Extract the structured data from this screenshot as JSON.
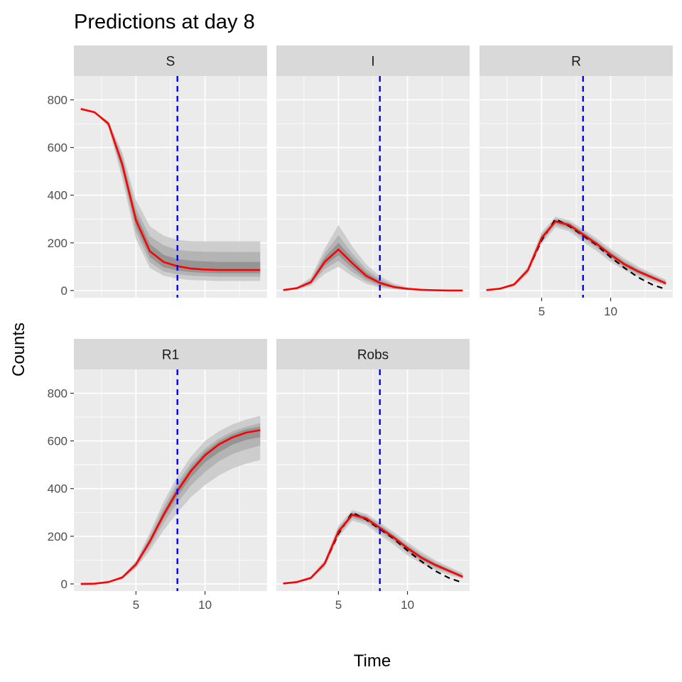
{
  "chart_data": {
    "type": "line",
    "title": "Predictions at day 8",
    "xlabel": "Time",
    "ylabel": "Counts",
    "xlim": [
      0.5,
      14.5
    ],
    "ylim": [
      -30,
      900
    ],
    "x_ticks": [
      5,
      10
    ],
    "y_ticks": [
      0,
      200,
      400,
      600,
      800
    ],
    "vline_x": 8,
    "colors": {
      "panel_bg": "#ebebeb",
      "grid": "#ffffff",
      "strip_bg": "#d9d9d9",
      "median": "#ff0000",
      "vline": "#0000ff",
      "observed": "#000000",
      "band_light": "#c8c8c8",
      "band_mid": "#afafaf",
      "band_dark": "#8f8f8f"
    },
    "x": [
      1,
      2,
      3,
      4,
      5,
      6,
      7,
      8,
      9,
      10,
      11,
      12,
      13,
      14
    ],
    "panels": [
      {
        "name": "S",
        "median": [
          762,
          748,
          700,
          530,
          295,
          165,
          120,
          102,
          92,
          88,
          86,
          86,
          86,
          86
        ],
        "bands": [
          {
            "lo": [
              762,
              748,
              685,
              470,
              215,
              95,
              62,
              50,
              44,
              42,
              40,
              40,
              40,
              40
            ],
            "hi": [
              762,
              748,
              712,
              580,
              380,
              270,
              230,
              212,
              207,
              206,
              206,
              206,
              206,
              206
            ]
          },
          {
            "lo": [
              762,
              748,
              692,
              495,
              245,
              118,
              80,
              68,
              62,
              60,
              58,
              58,
              58,
              58
            ],
            "hi": [
              762,
              748,
              708,
              565,
              345,
              228,
              190,
              170,
              165,
              163,
              162,
              162,
              162,
              162
            ]
          },
          {
            "lo": [
              762,
              748,
              696,
              512,
              268,
              140,
              98,
              84,
              77,
              74,
              72,
              72,
              72,
              72
            ],
            "hi": [
              762,
              748,
              704,
              548,
              322,
              195,
              150,
              132,
              125,
              122,
              120,
              120,
              120,
              120
            ]
          }
        ],
        "observed": null
      },
      {
        "name": "I",
        "median": [
          2,
          10,
          35,
          120,
          172,
          115,
          62,
          32,
          15,
          7,
          3,
          1,
          0,
          0
        ],
        "bands": [
          {
            "lo": [
              1,
              5,
              20,
              70,
              100,
              60,
              28,
              12,
              5,
              2,
              1,
              0,
              0,
              0
            ],
            "hi": [
              3,
              15,
              55,
              175,
              275,
              185,
              110,
              60,
              30,
              14,
              7,
              3,
              1,
              1
            ]
          },
          {
            "lo": [
              1,
              7,
              26,
              90,
              125,
              78,
              40,
              18,
              8,
              3,
              1,
              0,
              0,
              0
            ],
            "hi": [
              3,
              13,
              46,
              155,
              232,
              155,
              90,
              48,
              23,
              10,
              5,
              2,
              1,
              1
            ]
          },
          {
            "lo": [
              2,
              8,
              30,
              105,
              148,
              95,
              50,
              24,
              11,
              5,
              2,
              1,
              0,
              0
            ],
            "hi": [
              3,
              12,
              40,
              138,
              200,
              135,
              76,
              40,
              19,
              9,
              4,
              2,
              1,
              0
            ]
          }
        ],
        "observed": null
      },
      {
        "name": "R",
        "median": [
          2,
          8,
          25,
          85,
          220,
          290,
          275,
          235,
          195,
          150,
          110,
          80,
          55,
          30
        ],
        "bands": [
          {
            "lo": [
              1,
              5,
              18,
              70,
              195,
              265,
              248,
              205,
              165,
              120,
              85,
              58,
              38,
              20
            ],
            "hi": [
              3,
              11,
              32,
              100,
              245,
              310,
              295,
              258,
              218,
              175,
              135,
              100,
              72,
              45
            ]
          },
          {
            "lo": [
              1,
              6,
              21,
              76,
              205,
              275,
              258,
              218,
              178,
              132,
              95,
              67,
              45,
              25
            ],
            "hi": [
              3,
              10,
              29,
              94,
              235,
              302,
              287,
              250,
              208,
              165,
              125,
              92,
              65,
              40
            ]
          },
          {
            "lo": [
              2,
              7,
              23,
              80,
              212,
              282,
              266,
              226,
              186,
              141,
              102,
              73,
              50,
              27
            ],
            "hi": [
              3,
              9,
              27,
              90,
              228,
              297,
              282,
              244,
              203,
              158,
              118,
              87,
              60,
              35
            ]
          }
        ],
        "observed": [
          2,
          8,
          25,
          85,
          210,
          300,
          270,
          230,
          190,
          140,
          95,
          55,
          25,
          5
        ]
      },
      {
        "name": "R1",
        "median": [
          0,
          1,
          8,
          27,
          82,
          178,
          290,
          390,
          475,
          540,
          585,
          615,
          635,
          645
        ],
        "bands": [
          {
            "lo": [
              0,
              0,
              5,
              20,
              66,
              140,
              225,
              300,
              365,
              415,
              455,
              485,
              505,
              520
            ],
            "hi": [
              0,
              2,
              11,
              33,
              96,
              215,
              345,
              450,
              535,
              600,
              640,
              670,
              690,
              705
            ]
          },
          {
            "lo": [
              0,
              0,
              6,
              22,
              72,
              155,
              255,
              340,
              415,
              470,
              515,
              545,
              565,
              580
            ],
            "hi": [
              0,
              2,
              10,
              31,
              92,
              200,
              322,
              425,
              508,
              568,
              610,
              640,
              660,
              675
            ]
          },
          {
            "lo": [
              0,
              1,
              7,
              25,
              78,
              168,
              275,
              368,
              448,
              510,
              552,
              585,
              605,
              615
            ],
            "hi": [
              0,
              1,
              9,
              29,
              88,
              190,
              305,
              408,
              492,
              555,
              598,
              628,
              650,
              660
            ]
          }
        ],
        "observed": null
      },
      {
        "name": "Robs",
        "median": [
          2,
          8,
          25,
          85,
          220,
          290,
          275,
          235,
          195,
          150,
          110,
          80,
          55,
          30
        ],
        "bands": [
          {
            "lo": [
              1,
              5,
              18,
              70,
              195,
              265,
              248,
              205,
              165,
              120,
              85,
              58,
              38,
              20
            ],
            "hi": [
              3,
              11,
              32,
              100,
              245,
              310,
              295,
              258,
              218,
              175,
              135,
              100,
              72,
              45
            ]
          },
          {
            "lo": [
              1,
              6,
              21,
              76,
              205,
              275,
              258,
              218,
              178,
              132,
              95,
              67,
              45,
              25
            ],
            "hi": [
              3,
              10,
              29,
              94,
              235,
              302,
              287,
              250,
              208,
              165,
              125,
              92,
              65,
              40
            ]
          },
          {
            "lo": [
              2,
              7,
              23,
              80,
              212,
              282,
              266,
              226,
              186,
              141,
              102,
              73,
              50,
              27
            ],
            "hi": [
              3,
              9,
              27,
              90,
              228,
              297,
              282,
              244,
              203,
              158,
              118,
              87,
              60,
              35
            ]
          }
        ],
        "observed": [
          2,
          8,
          25,
          85,
          210,
          300,
          270,
          230,
          190,
          140,
          95,
          55,
          25,
          5
        ]
      }
    ]
  }
}
